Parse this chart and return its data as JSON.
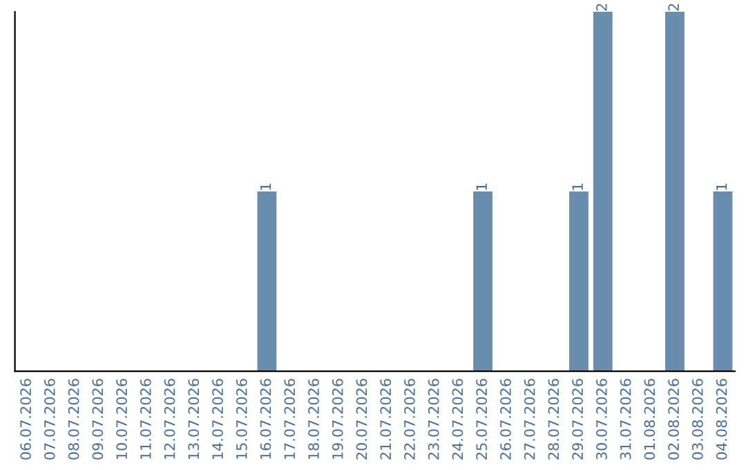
{
  "chart_data": {
    "type": "bar",
    "categories": [
      "06.07.2026",
      "07.07.2026",
      "08.07.2026",
      "09.07.2026",
      "10.07.2026",
      "11.07.2026",
      "12.07.2026",
      "13.07.2026",
      "14.07.2026",
      "15.07.2026",
      "16.07.2026",
      "17.07.2026",
      "18.07.2026",
      "19.07.2026",
      "20.07.2026",
      "21.07.2026",
      "22.07.2026",
      "23.07.2026",
      "24.07.2026",
      "25.07.2026",
      "26.07.2026",
      "27.07.2026",
      "28.07.2026",
      "29.07.2026",
      "30.07.2026",
      "31.07.2026",
      "01.08.2026",
      "02.08.2026",
      "03.08.2026",
      "04.08.2026"
    ],
    "values": [
      0,
      0,
      0,
      0,
      0,
      0,
      0,
      0,
      0,
      0,
      1,
      0,
      0,
      0,
      0,
      0,
      0,
      0,
      0,
      1,
      0,
      0,
      0,
      1,
      2,
      0,
      0,
      2,
      0,
      1
    ],
    "color": "#6a8cad",
    "ylim": [
      0,
      2
    ],
    "value_labels": [
      null,
      null,
      null,
      null,
      null,
      null,
      null,
      null,
      null,
      null,
      "1",
      null,
      null,
      null,
      null,
      null,
      null,
      null,
      null,
      "1",
      null,
      null,
      null,
      "1",
      "2",
      null,
      null,
      "2",
      null,
      "1"
    ],
    "tick_labels": "x",
    "grid": false,
    "legend": false
  }
}
